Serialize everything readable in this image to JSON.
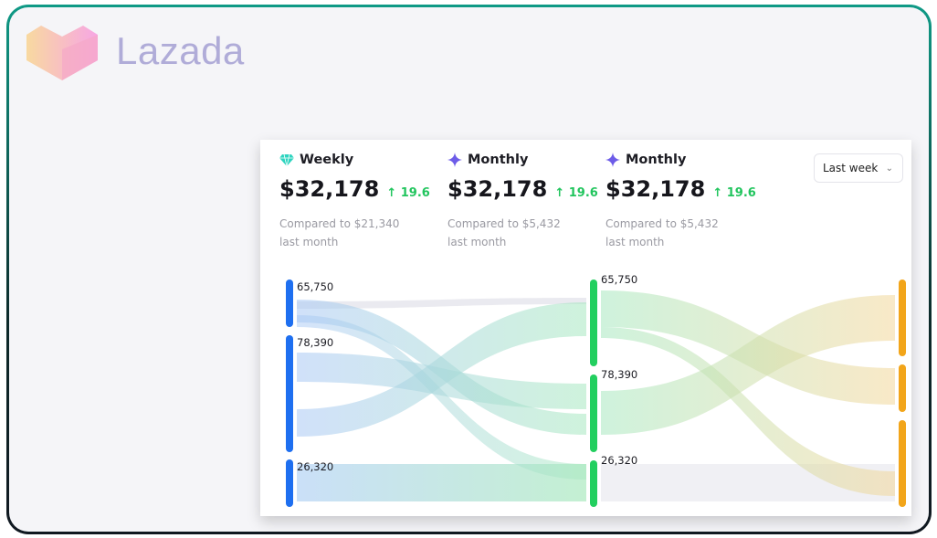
{
  "brand": {
    "name": "Lazada"
  },
  "stats": [
    {
      "icon": "diamond-icon",
      "label": "Weekly",
      "amount": "$32,178",
      "delta": "19.6",
      "compare": "Compared to $21,340",
      "period": "last month",
      "color": "#2dd4bf"
    },
    {
      "icon": "sparkle-icon",
      "label": "Monthly",
      "amount": "$32,178",
      "delta": "19.6",
      "compare": "Compared to $5,432",
      "period": "last month",
      "color": "#6d5ce8"
    },
    {
      "icon": "sparkle-icon",
      "label": "Monthly",
      "amount": "$32,178",
      "delta": "19.6",
      "compare": "Compared to $5,432",
      "period": "last month",
      "color": "#6d5ce8"
    }
  ],
  "filter": {
    "selected": "Last week"
  },
  "chart_data": {
    "type": "sankey",
    "columns": [
      {
        "color": "#1e6ff0",
        "nodes": [
          {
            "label": "65,750"
          },
          {
            "label": "78,390"
          },
          {
            "label": "26,320"
          }
        ]
      },
      {
        "color": "#22cf5f",
        "nodes": [
          {
            "label": "65,750"
          },
          {
            "label": "78,390"
          },
          {
            "label": "26,320"
          }
        ]
      },
      {
        "color": "#f2a51a",
        "nodes": [
          {
            "label": ""
          },
          {
            "label": ""
          },
          {
            "label": ""
          }
        ]
      }
    ]
  }
}
